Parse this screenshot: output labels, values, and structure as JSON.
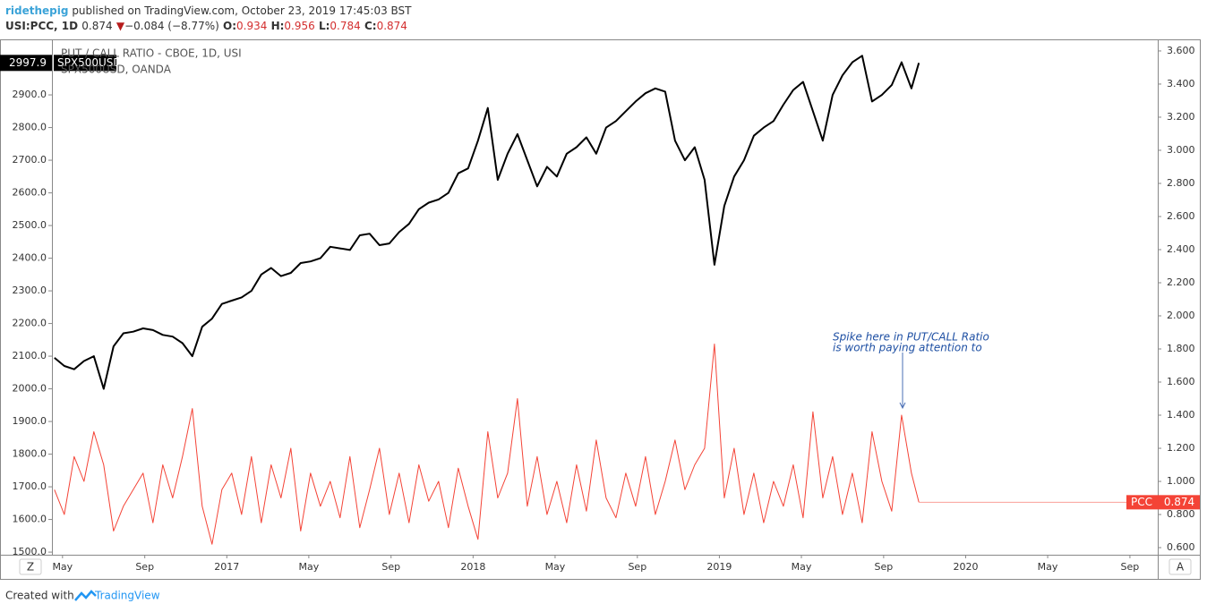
{
  "header": {
    "author": "ridethepig",
    "published": "published on TradingView.com, October 23, 2019 17:45:03 BST",
    "symbol": "USI:PCC, 1D",
    "last": "0.874",
    "arrow": "▼",
    "change": "−0.084 (−8.77%)",
    "ohlc": [
      {
        "label": "O:",
        "value": "0.934"
      },
      {
        "label": "H:",
        "value": "0.956"
      },
      {
        "label": "L:",
        "value": "0.784"
      },
      {
        "label": "C:",
        "value": "0.874"
      }
    ]
  },
  "chart_data": {
    "type": "line",
    "x": [
      2016.3,
      2016.34,
      2016.38,
      2016.42,
      2016.46,
      2016.5,
      2016.54,
      2016.58,
      2016.62,
      2016.66,
      2016.7,
      2016.74,
      2016.78,
      2016.82,
      2016.86,
      2016.9,
      2016.94,
      2016.98,
      2017.02,
      2017.06,
      2017.1,
      2017.14,
      2017.18,
      2017.22,
      2017.26,
      2017.3,
      2017.34,
      2017.38,
      2017.42,
      2017.46,
      2017.5,
      2017.54,
      2017.58,
      2017.62,
      2017.66,
      2017.7,
      2017.74,
      2017.78,
      2017.82,
      2017.86,
      2017.9,
      2017.94,
      2017.98,
      2018.02,
      2018.06,
      2018.1,
      2018.14,
      2018.18,
      2018.22,
      2018.26,
      2018.3,
      2018.34,
      2018.38,
      2018.42,
      2018.46,
      2018.5,
      2018.54,
      2018.58,
      2018.62,
      2018.66,
      2018.7,
      2018.74,
      2018.78,
      2018.82,
      2018.86,
      2018.9,
      2018.94,
      2018.98,
      2019.02,
      2019.06,
      2019.1,
      2019.14,
      2019.18,
      2019.22,
      2019.26,
      2019.3,
      2019.34,
      2019.38,
      2019.42,
      2019.46,
      2019.5,
      2019.54,
      2019.58,
      2019.62,
      2019.66,
      2019.7,
      2019.74,
      2019.78,
      2019.81
    ],
    "series": [
      {
        "name": "PUT / CALL RATIO - CBOE, 1D, USI",
        "short_name": "PCC",
        "color": "#f44336",
        "axis": "y2",
        "values": [
          0.95,
          0.8,
          1.15,
          1.0,
          1.3,
          1.1,
          0.7,
          0.85,
          0.95,
          1.05,
          0.75,
          1.1,
          0.9,
          1.15,
          1.44,
          0.85,
          0.62,
          0.95,
          1.05,
          0.8,
          1.15,
          0.75,
          1.1,
          0.9,
          1.2,
          0.7,
          1.05,
          0.85,
          1.0,
          0.78,
          1.15,
          0.72,
          0.95,
          1.2,
          0.8,
          1.05,
          0.75,
          1.1,
          0.88,
          1.0,
          0.72,
          1.08,
          0.85,
          0.65,
          1.3,
          0.9,
          1.05,
          1.5,
          0.85,
          1.15,
          0.8,
          1.0,
          0.75,
          1.1,
          0.82,
          1.25,
          0.9,
          0.78,
          1.05,
          0.85,
          1.15,
          0.8,
          1.0,
          1.25,
          0.95,
          1.1,
          1.2,
          1.83,
          0.9,
          1.2,
          0.8,
          1.05,
          0.75,
          1.0,
          0.85,
          1.1,
          0.78,
          1.42,
          0.9,
          1.15,
          0.8,
          1.05,
          0.75,
          1.3,
          1.0,
          0.82,
          1.4,
          1.05,
          0.874
        ]
      },
      {
        "name": "SPX500USD, OANDA",
        "short_name": "SPX500USD",
        "color": "#000000",
        "axis": "y",
        "values": [
          2095,
          2070,
          2060,
          2085,
          2100,
          2000,
          2130,
          2170,
          2175,
          2185,
          2180,
          2165,
          2160,
          2140,
          2100,
          2190,
          2215,
          2260,
          2270,
          2280,
          2300,
          2350,
          2370,
          2345,
          2355,
          2385,
          2390,
          2400,
          2435,
          2430,
          2425,
          2470,
          2475,
          2440,
          2445,
          2480,
          2505,
          2550,
          2570,
          2580,
          2600,
          2660,
          2675,
          2760,
          2860,
          2640,
          2720,
          2780,
          2700,
          2620,
          2680,
          2650,
          2720,
          2740,
          2770,
          2720,
          2800,
          2820,
          2850,
          2880,
          2905,
          2920,
          2910,
          2760,
          2700,
          2740,
          2640,
          2380,
          2560,
          2650,
          2700,
          2775,
          2800,
          2820,
          2870,
          2915,
          2940,
          2850,
          2760,
          2900,
          2960,
          3000,
          3020,
          2880,
          2900,
          2930,
          3000,
          2920,
          2997.9
        ]
      }
    ],
    "xlim": [
      2016.29,
      2020.78
    ],
    "xticks": [
      {
        "value": 2016.333,
        "label": "May"
      },
      {
        "value": 2016.667,
        "label": "Sep"
      },
      {
        "value": 2017,
        "label": "2017"
      },
      {
        "value": 2017.333,
        "label": "May"
      },
      {
        "value": 2017.667,
        "label": "Sep"
      },
      {
        "value": 2018,
        "label": "2018"
      },
      {
        "value": 2018.333,
        "label": "May"
      },
      {
        "value": 2018.667,
        "label": "Sep"
      },
      {
        "value": 2019,
        "label": "2019"
      },
      {
        "value": 2019.333,
        "label": "May"
      },
      {
        "value": 2019.667,
        "label": "Sep"
      },
      {
        "value": 2020,
        "label": "2020"
      },
      {
        "value": 2020.333,
        "label": "May"
      },
      {
        "value": 2020.667,
        "label": "Sep"
      }
    ],
    "ylim": [
      1492,
      3070
    ],
    "yticks": [
      {
        "value": 1500,
        "label": "1500.0"
      },
      {
        "value": 1600,
        "label": "1600.0"
      },
      {
        "value": 1700,
        "label": "1700.0"
      },
      {
        "value": 1800,
        "label": "1800.0"
      },
      {
        "value": 1900,
        "label": "1900.0"
      },
      {
        "value": 2000,
        "label": "2000.0"
      },
      {
        "value": 2100,
        "label": "2100.0"
      },
      {
        "value": 2200,
        "label": "2200.0"
      },
      {
        "value": 2300,
        "label": "2300.0"
      },
      {
        "value": 2400,
        "label": "2400.0"
      },
      {
        "value": 2500,
        "label": "2500.0"
      },
      {
        "value": 2600,
        "label": "2600.0"
      },
      {
        "value": 2700,
        "label": "2700.0"
      },
      {
        "value": 2800,
        "label": "2800.0"
      },
      {
        "value": 2900,
        "label": "2900.0"
      }
    ],
    "y2lim": [
      0.557,
      3.67
    ],
    "y2ticks": [
      {
        "value": 0.6,
        "label": "0.600"
      },
      {
        "value": 0.8,
        "label": "0.800"
      },
      {
        "value": 1.0,
        "label": "1.000"
      },
      {
        "value": 1.2,
        "label": "1.200"
      },
      {
        "value": 1.4,
        "label": "1.400"
      },
      {
        "value": 1.6,
        "label": "1.600"
      },
      {
        "value": 1.8,
        "label": "1.800"
      },
      {
        "value": 2.0,
        "label": "2.000"
      },
      {
        "value": 2.2,
        "label": "2.200"
      },
      {
        "value": 2.4,
        "label": "2.400"
      },
      {
        "value": 2.6,
        "label": "2.600"
      },
      {
        "value": 2.8,
        "label": "2.800"
      },
      {
        "value": 3.0,
        "label": "3.000"
      },
      {
        "value": 3.2,
        "label": "3.200"
      },
      {
        "value": 3.4,
        "label": "3.400"
      },
      {
        "value": 3.6,
        "label": "3.600"
      }
    ],
    "grid": false,
    "annotation": [
      "Spike here in PUT/CALL Ratio",
      "is worth paying attention to"
    ]
  },
  "buttons": {
    "left": "Z",
    "right": "A"
  },
  "footer": {
    "text": "Created with",
    "brand": "TradingView"
  }
}
